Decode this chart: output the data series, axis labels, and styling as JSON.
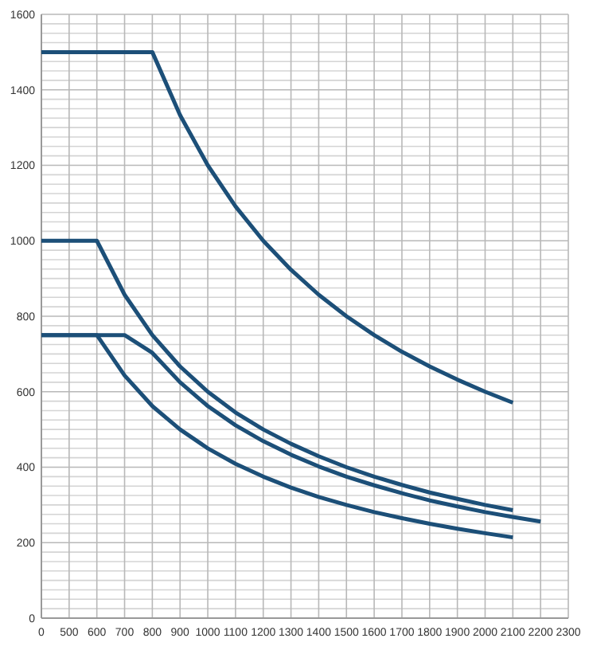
{
  "chart_data": {
    "type": "line",
    "categories": [
      "0",
      "500",
      "600",
      "700",
      "800",
      "900",
      "1000",
      "1100",
      "1200",
      "1300",
      "1400",
      "1500",
      "1600",
      "1700",
      "1800",
      "1900",
      "2000",
      "2100",
      "2200",
      "2300"
    ],
    "series": [
      {
        "color": "#1c4f78",
        "values": [
          1500,
          1500,
          1500,
          1500,
          1500,
          1333,
          1200,
          1091,
          1000,
          923,
          857,
          800,
          750,
          706,
          667,
          632,
          600,
          571,
          null,
          null
        ]
      },
      {
        "color": "#1c4f78",
        "values": [
          1000,
          1000,
          1000,
          857,
          750,
          667,
          600,
          545,
          500,
          462,
          429,
          400,
          375,
          353,
          333,
          316,
          300,
          286,
          null,
          null
        ]
      },
      {
        "color": "#1c4f78",
        "values": [
          750,
          750,
          750,
          750,
          703,
          625,
          562,
          511,
          469,
          433,
          402,
          375,
          352,
          331,
          312,
          296,
          281,
          268,
          256,
          null
        ]
      },
      {
        "color": "#1c4f78",
        "values": [
          750,
          750,
          750,
          643,
          562,
          500,
          450,
          409,
          375,
          346,
          321,
          300,
          281,
          265,
          250,
          237,
          225,
          214,
          null,
          null
        ]
      }
    ],
    "ylim": [
      0,
      1600
    ],
    "yticks": [
      0,
      {
        "value": 25,
        "label": null
      },
      {
        "value": 50,
        "label": null
      },
      {
        "value": 75,
        "label": null
      },
      {
        "value": 100,
        "label": null
      },
      {
        "value": 125,
        "label": null
      },
      {
        "value": 150,
        "label": null
      },
      {
        "value": 175,
        "label": null
      },
      200,
      {
        "value": 225,
        "label": null
      },
      {
        "value": 250,
        "label": null
      },
      {
        "value": 275,
        "label": null
      },
      {
        "value": 300,
        "label": null
      },
      {
        "value": 325,
        "label": null
      },
      {
        "value": 350,
        "label": null
      },
      {
        "value": 375,
        "label": null
      },
      400,
      {
        "value": 425,
        "label": null
      },
      {
        "value": 450,
        "label": null
      },
      {
        "value": 475,
        "label": null
      },
      {
        "value": 500,
        "label": null
      },
      {
        "value": 525,
        "label": null
      },
      {
        "value": 550,
        "label": null
      },
      {
        "value": 575,
        "label": null
      },
      600,
      {
        "value": 625,
        "label": null
      },
      {
        "value": 650,
        "label": null
      },
      {
        "value": 675,
        "label": null
      },
      {
        "value": 700,
        "label": null
      },
      {
        "value": 725,
        "label": null
      },
      {
        "value": 750,
        "label": null
      },
      {
        "value": 775,
        "label": null
      },
      800,
      {
        "value": 825,
        "label": null
      },
      {
        "value": 850,
        "label": null
      },
      {
        "value": 875,
        "label": null
      },
      {
        "value": 900,
        "label": null
      },
      {
        "value": 925,
        "label": null
      },
      {
        "value": 950,
        "label": null
      },
      {
        "value": 975,
        "label": null
      },
      1000,
      {
        "value": 1025,
        "label": null
      },
      {
        "value": 1050,
        "label": null
      },
      {
        "value": 1075,
        "label": null
      },
      {
        "value": 1100,
        "label": null
      },
      {
        "value": 1125,
        "label": null
      },
      {
        "value": 1150,
        "label": null
      },
      {
        "value": 1175,
        "label": null
      },
      1200,
      {
        "value": 1225,
        "label": null
      },
      {
        "value": 1250,
        "label": null
      },
      {
        "value": 1275,
        "label": null
      },
      {
        "value": 1300,
        "label": null
      },
      {
        "value": 1325,
        "label": null
      },
      {
        "value": 1350,
        "label": null
      },
      {
        "value": 1375,
        "label": null
      },
      1400,
      {
        "value": 1425,
        "label": null
      },
      {
        "value": 1450,
        "label": null
      },
      {
        "value": 1475,
        "label": null
      },
      {
        "value": 1500,
        "label": null
      },
      {
        "value": 1525,
        "label": null
      },
      {
        "value": 1550,
        "label": null
      },
      {
        "value": 1575,
        "label": null
      },
      1600
    ],
    "grid": true,
    "marker": "none",
    "line_style": "solid"
  }
}
